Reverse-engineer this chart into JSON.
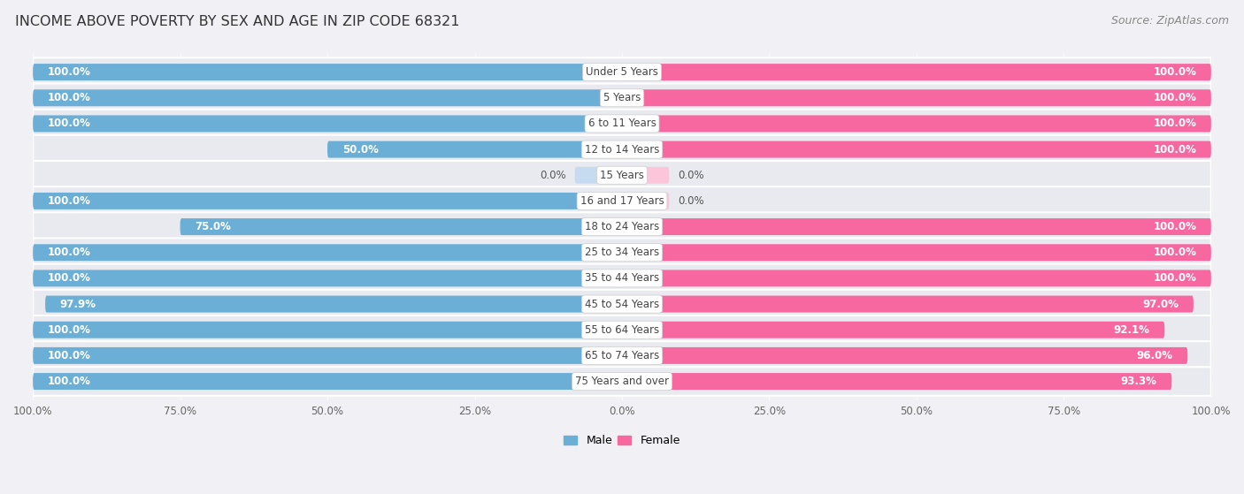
{
  "title": "INCOME ABOVE POVERTY BY SEX AND AGE IN ZIP CODE 68321",
  "source": "Source: ZipAtlas.com",
  "categories": [
    "Under 5 Years",
    "5 Years",
    "6 to 11 Years",
    "12 to 14 Years",
    "15 Years",
    "16 and 17 Years",
    "18 to 24 Years",
    "25 to 34 Years",
    "35 to 44 Years",
    "45 to 54 Years",
    "55 to 64 Years",
    "65 to 74 Years",
    "75 Years and over"
  ],
  "male_values": [
    100.0,
    100.0,
    100.0,
    50.0,
    0.0,
    100.0,
    75.0,
    100.0,
    100.0,
    97.9,
    100.0,
    100.0,
    100.0
  ],
  "female_values": [
    100.0,
    100.0,
    100.0,
    100.0,
    0.0,
    0.0,
    100.0,
    100.0,
    100.0,
    97.0,
    92.1,
    96.0,
    93.3
  ],
  "male_color": "#6baed6",
  "female_color": "#f768a1",
  "male_color_light": "#c6dbef",
  "female_color_light": "#fcc5da",
  "row_bg_color": "#e8eaf0",
  "chart_bg_color": "#f0f0f5",
  "white": "#ffffff",
  "title_fontsize": 11.5,
  "label_fontsize": 8.5,
  "cat_fontsize": 8.5,
  "tick_fontsize": 8.5,
  "source_fontsize": 9,
  "bar_height": 0.62
}
